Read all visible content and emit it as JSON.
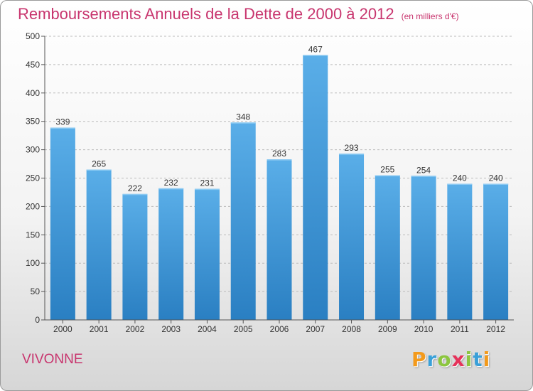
{
  "title": "Remboursements Annuels de la Dette de 2000 à 2012",
  "subtitle": "(en milliers d'€)",
  "commune": "VIVONNE",
  "brand": {
    "text": "Proxiti",
    "letter_colors": [
      "#f39a1c",
      "#3aa0d8",
      "#8cc63f",
      "#e5325a",
      "#8cc63f",
      "#3aa0d8",
      "#f39a1c"
    ]
  },
  "colors": {
    "title": "#c8356e",
    "bar_top": "#5aaee8",
    "bar_bottom": "#2a7fc2",
    "axis": "#555555",
    "grid": "#bbbbbb"
  },
  "chart_data": {
    "type": "bar",
    "categories": [
      "2000",
      "2001",
      "2002",
      "2003",
      "2004",
      "2005",
      "2006",
      "2007",
      "2008",
      "2009",
      "2010",
      "2011",
      "2012"
    ],
    "values": [
      339,
      265,
      222,
      232,
      231,
      348,
      283,
      467,
      293,
      255,
      254,
      240,
      240
    ],
    "ylim": [
      0,
      500
    ],
    "yticks": [
      0,
      50,
      100,
      150,
      200,
      250,
      300,
      350,
      400,
      450,
      500
    ],
    "grid": true
  }
}
